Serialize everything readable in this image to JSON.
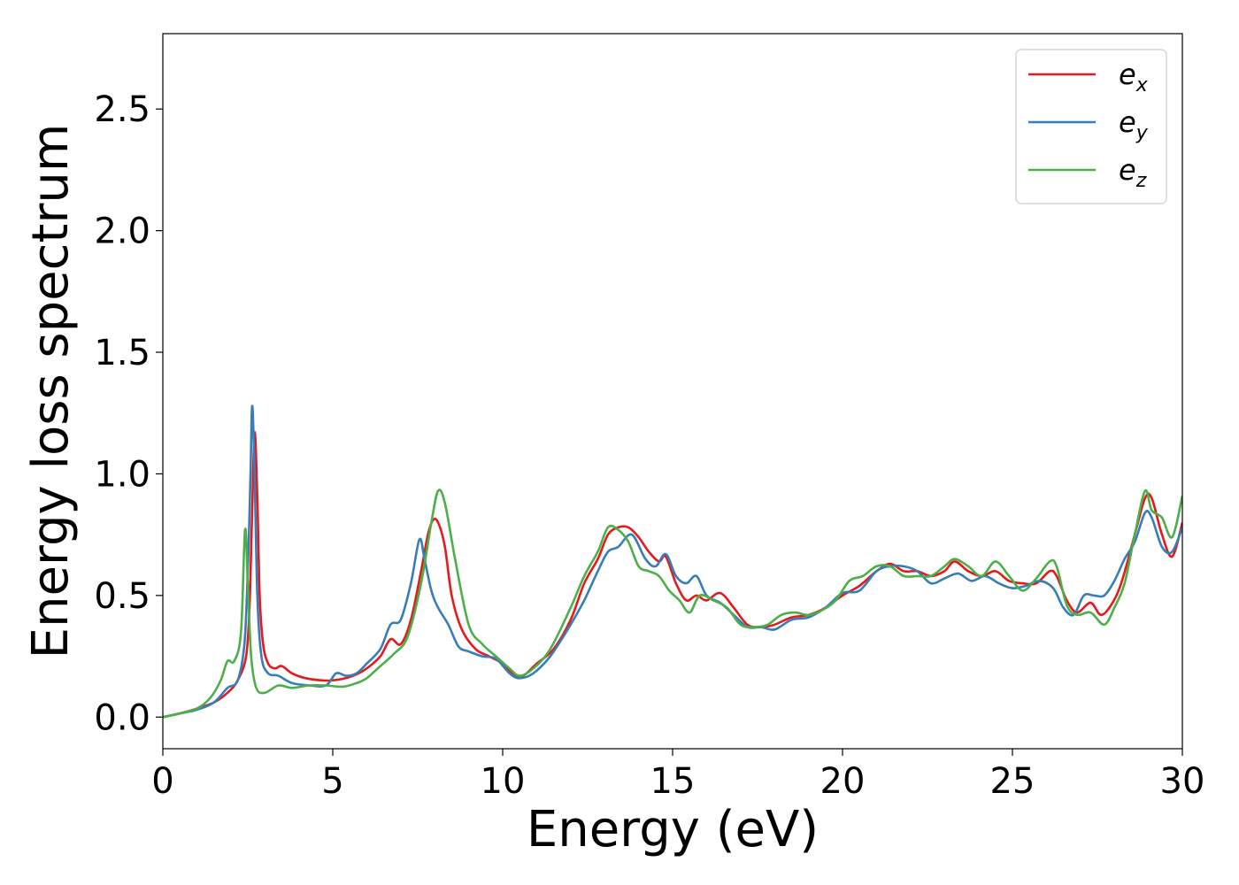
{
  "chart_data": {
    "type": "line",
    "title": "",
    "xlabel": "Energy (eV)",
    "ylabel": "Energy loss spectrum",
    "xlim": [
      0,
      30
    ],
    "ylim": [
      -0.13,
      2.81
    ],
    "xticks": [
      0,
      5,
      10,
      15,
      20,
      25,
      30
    ],
    "xtick_labels": [
      "0",
      "5",
      "10",
      "15",
      "20",
      "25",
      "30"
    ],
    "yticks": [
      0.0,
      0.5,
      1.0,
      1.5,
      2.0,
      2.5
    ],
    "ytick_labels": [
      "0.0",
      "0.5",
      "1.0",
      "1.5",
      "2.0",
      "2.5"
    ],
    "grid": false,
    "legend_position": "top-right",
    "series": [
      {
        "name": "e_x",
        "label_main": "e",
        "label_sub": "x",
        "color": "#e41a1c",
        "points": [
          [
            0,
            0.0
          ],
          [
            0.5,
            0.015
          ],
          [
            1.0,
            0.035
          ],
          [
            1.5,
            0.06
          ],
          [
            1.9,
            0.1
          ],
          [
            2.2,
            0.15
          ],
          [
            2.45,
            0.25
          ],
          [
            2.55,
            0.45
          ],
          [
            2.62,
            0.8
          ],
          [
            2.7,
            1.17
          ],
          [
            2.78,
            0.9
          ],
          [
            2.85,
            0.5
          ],
          [
            2.95,
            0.3
          ],
          [
            3.1,
            0.22
          ],
          [
            3.3,
            0.2
          ],
          [
            3.5,
            0.21
          ],
          [
            3.8,
            0.18
          ],
          [
            4.2,
            0.16
          ],
          [
            4.8,
            0.15
          ],
          [
            5.2,
            0.155
          ],
          [
            5.6,
            0.17
          ],
          [
            6.0,
            0.2
          ],
          [
            6.4,
            0.25
          ],
          [
            6.7,
            0.32
          ],
          [
            7.0,
            0.3
          ],
          [
            7.3,
            0.4
          ],
          [
            7.6,
            0.6
          ],
          [
            7.8,
            0.75
          ],
          [
            7.95,
            0.81
          ],
          [
            8.1,
            0.8
          ],
          [
            8.3,
            0.7
          ],
          [
            8.5,
            0.5
          ],
          [
            8.8,
            0.36
          ],
          [
            9.2,
            0.28
          ],
          [
            9.6,
            0.25
          ],
          [
            10.0,
            0.22
          ],
          [
            10.3,
            0.18
          ],
          [
            10.6,
            0.17
          ],
          [
            11.0,
            0.22
          ],
          [
            11.5,
            0.28
          ],
          [
            12.0,
            0.4
          ],
          [
            12.4,
            0.55
          ],
          [
            12.8,
            0.65
          ],
          [
            13.1,
            0.75
          ],
          [
            13.4,
            0.78
          ],
          [
            13.7,
            0.78
          ],
          [
            14.0,
            0.74
          ],
          [
            14.3,
            0.68
          ],
          [
            14.6,
            0.64
          ],
          [
            14.8,
            0.66
          ],
          [
            15.1,
            0.55
          ],
          [
            15.4,
            0.48
          ],
          [
            15.7,
            0.5
          ],
          [
            16.0,
            0.48
          ],
          [
            16.4,
            0.51
          ],
          [
            16.8,
            0.45
          ],
          [
            17.2,
            0.38
          ],
          [
            17.6,
            0.37
          ],
          [
            18.0,
            0.38
          ],
          [
            18.5,
            0.41
          ],
          [
            19.0,
            0.42
          ],
          [
            19.5,
            0.45
          ],
          [
            20.0,
            0.5
          ],
          [
            20.5,
            0.54
          ],
          [
            21.0,
            0.6
          ],
          [
            21.4,
            0.63
          ],
          [
            21.8,
            0.6
          ],
          [
            22.2,
            0.6
          ],
          [
            22.6,
            0.58
          ],
          [
            23.0,
            0.6
          ],
          [
            23.3,
            0.64
          ],
          [
            23.7,
            0.6
          ],
          [
            24.1,
            0.58
          ],
          [
            24.5,
            0.6
          ],
          [
            24.9,
            0.56
          ],
          [
            25.3,
            0.55
          ],
          [
            25.7,
            0.55
          ],
          [
            26.1,
            0.6
          ],
          [
            26.3,
            0.58
          ],
          [
            26.6,
            0.48
          ],
          [
            26.9,
            0.43
          ],
          [
            27.3,
            0.47
          ],
          [
            27.6,
            0.42
          ],
          [
            27.9,
            0.46
          ],
          [
            28.2,
            0.55
          ],
          [
            28.6,
            0.75
          ],
          [
            28.9,
            0.9
          ],
          [
            29.1,
            0.9
          ],
          [
            29.4,
            0.75
          ],
          [
            29.7,
            0.66
          ],
          [
            30.0,
            0.8
          ]
        ]
      },
      {
        "name": "e_y",
        "label_main": "e",
        "label_sub": "y",
        "color": "#377eb8",
        "points": [
          [
            0,
            0.0
          ],
          [
            0.5,
            0.015
          ],
          [
            1.0,
            0.03
          ],
          [
            1.5,
            0.06
          ],
          [
            1.9,
            0.12
          ],
          [
            2.2,
            0.15
          ],
          [
            2.4,
            0.3
          ],
          [
            2.5,
            0.6
          ],
          [
            2.58,
            1.0
          ],
          [
            2.63,
            1.28
          ],
          [
            2.7,
            1.0
          ],
          [
            2.78,
            0.5
          ],
          [
            2.9,
            0.25
          ],
          [
            3.1,
            0.18
          ],
          [
            3.4,
            0.17
          ],
          [
            3.8,
            0.14
          ],
          [
            4.3,
            0.13
          ],
          [
            4.8,
            0.13
          ],
          [
            5.1,
            0.18
          ],
          [
            5.4,
            0.17
          ],
          [
            5.7,
            0.18
          ],
          [
            6.0,
            0.22
          ],
          [
            6.4,
            0.28
          ],
          [
            6.7,
            0.38
          ],
          [
            7.0,
            0.4
          ],
          [
            7.3,
            0.55
          ],
          [
            7.55,
            0.73
          ],
          [
            7.7,
            0.65
          ],
          [
            7.9,
            0.52
          ],
          [
            8.1,
            0.45
          ],
          [
            8.4,
            0.38
          ],
          [
            8.7,
            0.29
          ],
          [
            9.0,
            0.27
          ],
          [
            9.4,
            0.25
          ],
          [
            9.8,
            0.24
          ],
          [
            10.2,
            0.18
          ],
          [
            10.5,
            0.16
          ],
          [
            10.9,
            0.18
          ],
          [
            11.4,
            0.25
          ],
          [
            12.0,
            0.38
          ],
          [
            12.4,
            0.48
          ],
          [
            12.8,
            0.6
          ],
          [
            13.1,
            0.68
          ],
          [
            13.4,
            0.7
          ],
          [
            13.8,
            0.75
          ],
          [
            14.2,
            0.65
          ],
          [
            14.5,
            0.62
          ],
          [
            14.8,
            0.67
          ],
          [
            15.1,
            0.58
          ],
          [
            15.4,
            0.55
          ],
          [
            15.7,
            0.58
          ],
          [
            16.0,
            0.5
          ],
          [
            16.4,
            0.47
          ],
          [
            16.8,
            0.42
          ],
          [
            17.2,
            0.37
          ],
          [
            17.6,
            0.37
          ],
          [
            18.0,
            0.36
          ],
          [
            18.5,
            0.4
          ],
          [
            19.0,
            0.41
          ],
          [
            19.5,
            0.45
          ],
          [
            20.0,
            0.51
          ],
          [
            20.5,
            0.52
          ],
          [
            21.0,
            0.6
          ],
          [
            21.4,
            0.62
          ],
          [
            21.8,
            0.62
          ],
          [
            22.2,
            0.6
          ],
          [
            22.6,
            0.55
          ],
          [
            23.0,
            0.57
          ],
          [
            23.4,
            0.59
          ],
          [
            23.8,
            0.56
          ],
          [
            24.2,
            0.58
          ],
          [
            24.6,
            0.55
          ],
          [
            25.0,
            0.53
          ],
          [
            25.4,
            0.54
          ],
          [
            25.8,
            0.56
          ],
          [
            26.2,
            0.53
          ],
          [
            26.5,
            0.45
          ],
          [
            26.8,
            0.42
          ],
          [
            27.1,
            0.5
          ],
          [
            27.4,
            0.5
          ],
          [
            27.7,
            0.5
          ],
          [
            28.0,
            0.56
          ],
          [
            28.3,
            0.65
          ],
          [
            28.6,
            0.72
          ],
          [
            28.9,
            0.84
          ],
          [
            29.1,
            0.82
          ],
          [
            29.4,
            0.7
          ],
          [
            29.7,
            0.68
          ],
          [
            30.0,
            0.78
          ]
        ]
      },
      {
        "name": "e_z",
        "label_main": "e",
        "label_sub": "z",
        "color": "#4daf4a",
        "points": [
          [
            0,
            0.0
          ],
          [
            0.5,
            0.015
          ],
          [
            1.0,
            0.035
          ],
          [
            1.4,
            0.08
          ],
          [
            1.7,
            0.15
          ],
          [
            1.9,
            0.23
          ],
          [
            2.1,
            0.23
          ],
          [
            2.3,
            0.35
          ],
          [
            2.42,
            0.77
          ],
          [
            2.5,
            0.55
          ],
          [
            2.6,
            0.25
          ],
          [
            2.75,
            0.12
          ],
          [
            3.0,
            0.1
          ],
          [
            3.4,
            0.13
          ],
          [
            3.8,
            0.12
          ],
          [
            4.3,
            0.13
          ],
          [
            4.8,
            0.13
          ],
          [
            5.3,
            0.125
          ],
          [
            5.7,
            0.14
          ],
          [
            6.0,
            0.16
          ],
          [
            6.4,
            0.21
          ],
          [
            6.8,
            0.26
          ],
          [
            7.2,
            0.33
          ],
          [
            7.6,
            0.55
          ],
          [
            7.9,
            0.8
          ],
          [
            8.1,
            0.93
          ],
          [
            8.3,
            0.88
          ],
          [
            8.6,
            0.65
          ],
          [
            9.0,
            0.38
          ],
          [
            9.4,
            0.3
          ],
          [
            9.8,
            0.25
          ],
          [
            10.2,
            0.2
          ],
          [
            10.5,
            0.17
          ],
          [
            10.9,
            0.2
          ],
          [
            11.4,
            0.28
          ],
          [
            12.0,
            0.45
          ],
          [
            12.4,
            0.58
          ],
          [
            12.8,
            0.68
          ],
          [
            13.1,
            0.78
          ],
          [
            13.4,
            0.77
          ],
          [
            13.7,
            0.72
          ],
          [
            14.0,
            0.62
          ],
          [
            14.3,
            0.6
          ],
          [
            14.6,
            0.58
          ],
          [
            14.9,
            0.52
          ],
          [
            15.2,
            0.48
          ],
          [
            15.5,
            0.43
          ],
          [
            15.8,
            0.5
          ],
          [
            16.2,
            0.48
          ],
          [
            16.6,
            0.45
          ],
          [
            17.0,
            0.38
          ],
          [
            17.4,
            0.37
          ],
          [
            17.8,
            0.38
          ],
          [
            18.2,
            0.42
          ],
          [
            18.6,
            0.43
          ],
          [
            19.0,
            0.42
          ],
          [
            19.4,
            0.44
          ],
          [
            19.8,
            0.48
          ],
          [
            20.2,
            0.56
          ],
          [
            20.6,
            0.58
          ],
          [
            21.0,
            0.62
          ],
          [
            21.4,
            0.62
          ],
          [
            21.8,
            0.58
          ],
          [
            22.2,
            0.58
          ],
          [
            22.6,
            0.58
          ],
          [
            23.0,
            0.62
          ],
          [
            23.3,
            0.65
          ],
          [
            23.7,
            0.62
          ],
          [
            24.1,
            0.58
          ],
          [
            24.5,
            0.64
          ],
          [
            24.9,
            0.58
          ],
          [
            25.3,
            0.52
          ],
          [
            25.7,
            0.57
          ],
          [
            26.1,
            0.64
          ],
          [
            26.3,
            0.62
          ],
          [
            26.6,
            0.46
          ],
          [
            26.9,
            0.42
          ],
          [
            27.3,
            0.43
          ],
          [
            27.7,
            0.38
          ],
          [
            28.0,
            0.45
          ],
          [
            28.3,
            0.55
          ],
          [
            28.6,
            0.75
          ],
          [
            28.9,
            0.93
          ],
          [
            29.1,
            0.85
          ],
          [
            29.4,
            0.82
          ],
          [
            29.7,
            0.74
          ],
          [
            30.0,
            0.91
          ]
        ]
      }
    ]
  }
}
